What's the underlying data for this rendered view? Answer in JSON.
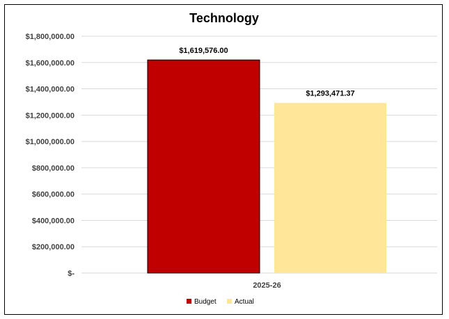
{
  "chart_data": {
    "type": "bar",
    "title": "Technology",
    "categories": [
      "2025-26"
    ],
    "series": [
      {
        "name": "Budget",
        "values": [
          1619576.0
        ],
        "color": "#c00000",
        "label": "$1,619,576.00"
      },
      {
        "name": "Actual",
        "values": [
          1293471.37
        ],
        "color": "#ffe699",
        "label": "$1,293,471.37"
      }
    ],
    "ylim": [
      0,
      1800000
    ],
    "yticks": [
      0,
      200000,
      400000,
      600000,
      800000,
      1000000,
      1200000,
      1400000,
      1600000,
      1800000
    ],
    "ytick_labels": [
      "$-",
      "$200,000.00",
      "$400,000.00",
      "$600,000.00",
      "$800,000.00",
      "$1,000,000.00",
      "$1,200,000.00",
      "$1,400,000.00",
      "$1,600,000.00",
      "$1,800,000.00"
    ],
    "grid": true,
    "legend_position": "bottom"
  }
}
